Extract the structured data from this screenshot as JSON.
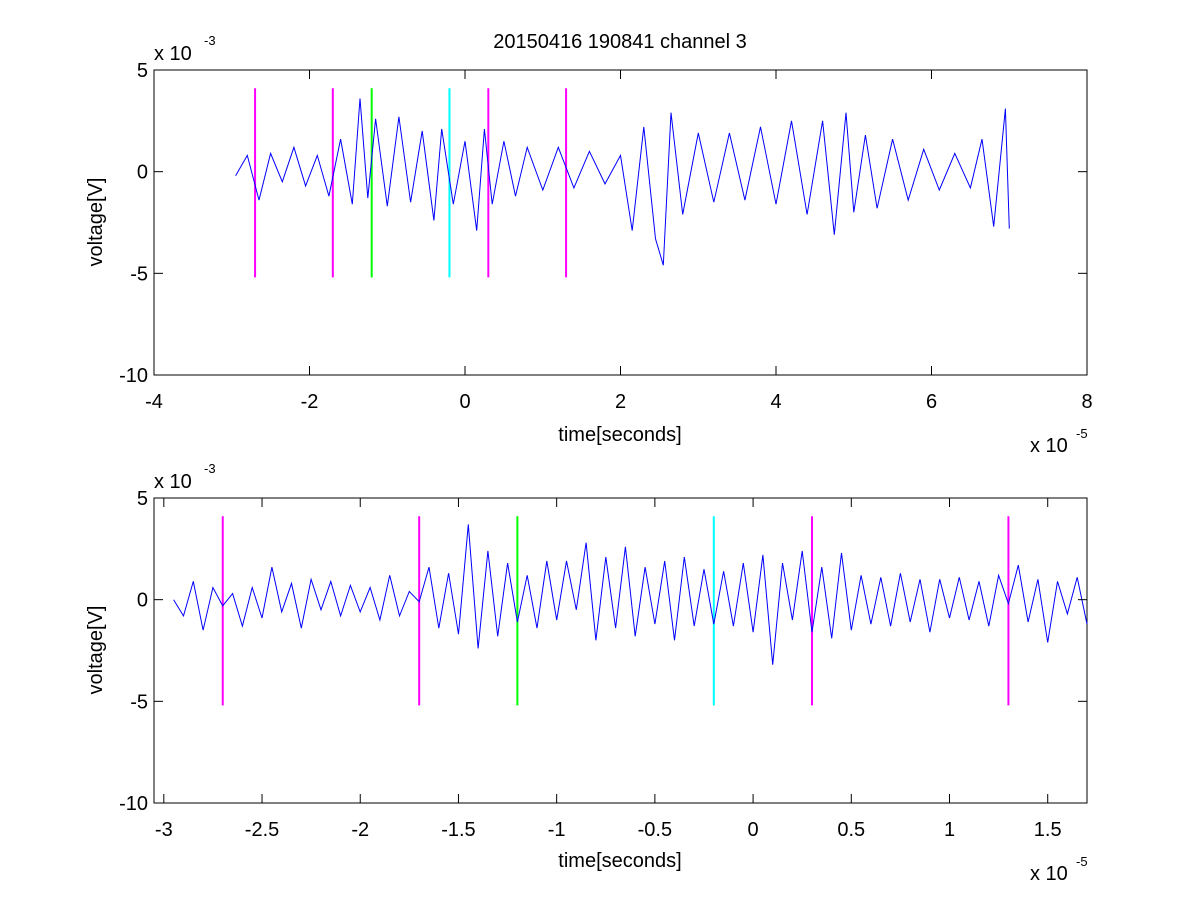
{
  "chart_data": [
    {
      "type": "line",
      "title": "20150416 190841 channel 3",
      "xlabel": "time[seconds]",
      "ylabel": "voltage[V]",
      "x_exponent_label": "x 10",
      "x_exponent": "-5",
      "y_exponent_label": "x 10",
      "y_exponent": "-3",
      "xlim": [
        -4,
        8
      ],
      "ylim": [
        -10,
        5
      ],
      "xticks": [
        -4,
        -2,
        0,
        2,
        4,
        6,
        8
      ],
      "xtick_labels": [
        "-4",
        "-2",
        "0",
        "2",
        "4",
        "6",
        "8"
      ],
      "yticks": [
        -10,
        -5,
        0,
        5
      ],
      "ytick_labels": [
        "-10",
        "-5",
        "0",
        "5"
      ],
      "grid": false,
      "series": [
        {
          "color": "#0000ff",
          "x": [
            -2.95,
            -2.8,
            -2.65,
            -2.5,
            -2.35,
            -2.2,
            -2.05,
            -1.9,
            -1.75,
            -1.6,
            -1.45,
            -1.35,
            -1.25,
            -1.15,
            -1.0,
            -0.85,
            -0.7,
            -0.55,
            -0.4,
            -0.3,
            -0.15,
            0.0,
            0.15,
            0.25,
            0.35,
            0.5,
            0.65,
            0.8,
            1.0,
            1.2,
            1.4,
            1.6,
            1.8,
            2.0,
            2.15,
            2.3,
            2.45,
            2.55,
            2.65,
            2.8,
            3.0,
            3.2,
            3.4,
            3.6,
            3.8,
            4.0,
            4.2,
            4.4,
            4.6,
            4.75,
            4.9,
            5.0,
            5.15,
            5.3,
            5.5,
            5.7,
            5.9,
            6.1,
            6.3,
            6.5,
            6.65,
            6.8,
            6.95,
            7.0
          ],
          "y": [
            -0.2,
            0.8,
            -1.4,
            0.9,
            -0.5,
            1.2,
            -0.7,
            0.8,
            -1.2,
            1.6,
            -1.6,
            3.6,
            -1.3,
            2.6,
            -1.7,
            2.7,
            -1.5,
            2.0,
            -2.4,
            2.1,
            -1.6,
            1.5,
            -2.9,
            2.1,
            -1.6,
            1.5,
            -1.2,
            1.2,
            -0.9,
            1.2,
            -0.8,
            1.0,
            -0.6,
            0.8,
            -2.9,
            2.2,
            -3.3,
            -4.6,
            2.9,
            -2.1,
            1.9,
            -1.5,
            1.9,
            -1.4,
            2.2,
            -1.6,
            2.5,
            -2.1,
            2.5,
            -3.1,
            2.9,
            -2.0,
            1.8,
            -1.8,
            1.6,
            -1.4,
            1.1,
            -0.9,
            0.9,
            -0.8,
            1.6,
            -2.7,
            3.1,
            -2.8
          ]
        }
      ],
      "vlines": [
        {
          "x": -2.7,
          "color": "#ff00ff"
        },
        {
          "x": -1.7,
          "color": "#ff00ff"
        },
        {
          "x": -1.2,
          "color": "#00ff00"
        },
        {
          "x": -0.2,
          "color": "#00ffff"
        },
        {
          "x": 0.3,
          "color": "#ff00ff"
        },
        {
          "x": 1.3,
          "color": "#ff00ff"
        }
      ],
      "vline_range": [
        -5.2,
        4.1
      ]
    },
    {
      "type": "line",
      "title": "",
      "xlabel": "time[seconds]",
      "ylabel": "voltage[V]",
      "x_exponent_label": "x 10",
      "x_exponent": "-5",
      "y_exponent_label": "x 10",
      "y_exponent": "-3",
      "xlim": [
        -3.05,
        1.7
      ],
      "ylim": [
        -10,
        5
      ],
      "xticks": [
        -3,
        -2.5,
        -2,
        -1.5,
        -1,
        -0.5,
        0,
        0.5,
        1,
        1.5
      ],
      "xtick_labels": [
        "-3",
        "-2.5",
        "-2",
        "-1.5",
        "-1",
        "-0.5",
        "0",
        "0.5",
        "1",
        "1.5"
      ],
      "yticks": [
        -10,
        -5,
        0,
        5
      ],
      "ytick_labels": [
        "-10",
        "-5",
        "0",
        "5"
      ],
      "grid": false,
      "series": [
        {
          "color": "#0000ff",
          "x": [
            -2.95,
            -2.9,
            -2.85,
            -2.8,
            -2.75,
            -2.7,
            -2.65,
            -2.6,
            -2.55,
            -2.5,
            -2.45,
            -2.4,
            -2.35,
            -2.3,
            -2.25,
            -2.2,
            -2.15,
            -2.1,
            -2.05,
            -2.0,
            -1.95,
            -1.9,
            -1.85,
            -1.8,
            -1.75,
            -1.7,
            -1.65,
            -1.6,
            -1.55,
            -1.5,
            -1.45,
            -1.4,
            -1.35,
            -1.3,
            -1.25,
            -1.2,
            -1.15,
            -1.1,
            -1.05,
            -1.0,
            -0.95,
            -0.9,
            -0.85,
            -0.8,
            -0.75,
            -0.7,
            -0.65,
            -0.6,
            -0.55,
            -0.5,
            -0.45,
            -0.4,
            -0.35,
            -0.3,
            -0.25,
            -0.2,
            -0.15,
            -0.1,
            -0.05,
            0.0,
            0.05,
            0.1,
            0.15,
            0.2,
            0.25,
            0.3,
            0.35,
            0.4,
            0.45,
            0.5,
            0.55,
            0.6,
            0.65,
            0.7,
            0.75,
            0.8,
            0.85,
            0.9,
            0.95,
            1.0,
            1.05,
            1.1,
            1.15,
            1.2,
            1.25,
            1.3,
            1.35,
            1.4,
            1.45,
            1.5,
            1.55,
            1.6,
            1.65,
            1.7
          ],
          "y": [
            0.0,
            -0.8,
            0.9,
            -1.5,
            0.6,
            -0.3,
            0.3,
            -1.3,
            0.6,
            -0.9,
            1.6,
            -0.6,
            0.8,
            -1.4,
            1.0,
            -0.5,
            0.9,
            -0.8,
            0.7,
            -0.6,
            0.6,
            -1.0,
            1.2,
            -0.8,
            0.4,
            -0.1,
            1.6,
            -1.4,
            1.3,
            -1.7,
            3.7,
            -2.4,
            2.4,
            -1.8,
            1.8,
            -1.1,
            1.2,
            -1.4,
            1.9,
            -1.0,
            1.9,
            -0.5,
            2.8,
            -2.0,
            2.1,
            -1.4,
            2.6,
            -1.8,
            1.6,
            -1.2,
            1.9,
            -2.0,
            2.1,
            -1.3,
            1.5,
            -1.2,
            1.4,
            -1.3,
            1.8,
            -1.6,
            2.2,
            -3.2,
            1.8,
            -1.0,
            2.4,
            -1.6,
            1.6,
            -1.9,
            2.3,
            -1.5,
            1.2,
            -1.2,
            1.1,
            -1.3,
            1.3,
            -1.1,
            1.0,
            -1.6,
            1.0,
            -0.9,
            1.1,
            -1.0,
            0.9,
            -1.3,
            1.2,
            -0.2,
            1.7,
            -1.1,
            1.0,
            -2.1,
            0.9,
            -0.7,
            1.1,
            -1.2
          ]
        }
      ],
      "vlines": [
        {
          "x": -2.7,
          "color": "#ff00ff"
        },
        {
          "x": -1.7,
          "color": "#ff00ff"
        },
        {
          "x": -1.2,
          "color": "#00ff00"
        },
        {
          "x": -0.2,
          "color": "#00ffff"
        },
        {
          "x": 0.3,
          "color": "#ff00ff"
        },
        {
          "x": 1.3,
          "color": "#ff00ff"
        }
      ],
      "vline_range": [
        -5.2,
        4.1
      ]
    }
  ]
}
